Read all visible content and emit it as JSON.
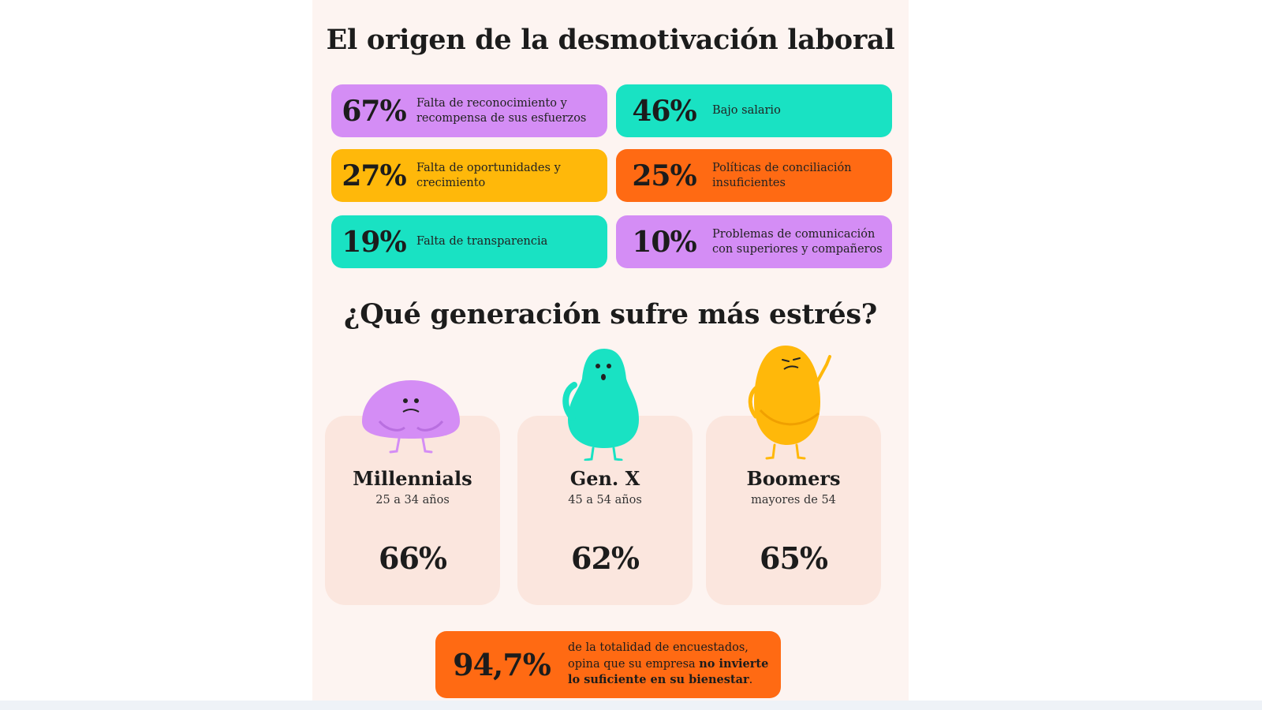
{
  "section1": {
    "title": "El origen de la desmotivación laboral"
  },
  "section2": {
    "title": "¿Qué generación sufre más estrés?"
  },
  "colors": {
    "purple": "#d48df5",
    "teal": "#19e2c3",
    "yellow": "#ffb80a",
    "orange": "#ff6a13",
    "card": "#fbe6de",
    "panel": "#fdf4f1"
  },
  "chart_data": [
    {
      "type": "table",
      "title": "El origen de la desmotivación laboral",
      "categories": [
        "Falta de reconocimiento y recompensa de sus esfuerzos",
        "Bajo salario",
        "Falta de oportunidades y crecimiento",
        "Políticas de conciliación insuficientes",
        "Falta de transparencia",
        "Problemas de comunicación con superiores y compañeros"
      ],
      "values": [
        67,
        46,
        27,
        25,
        19,
        10
      ],
      "labels": [
        "67%",
        "46%",
        "27%",
        "25%",
        "19%",
        "10%"
      ],
      "label_lines": [
        [
          "Falta de reconocimiento y",
          "recompensa de sus esfuerzos"
        ],
        [
          "Bajo salario"
        ],
        [
          "Falta de oportunidades y",
          "crecimiento"
        ],
        [
          "Políticas de conciliación",
          "insuficientes"
        ],
        [
          "Falta de transparencia"
        ],
        [
          "Problemas de comunicación",
          "con superiores y compañeros"
        ]
      ],
      "unit": "%"
    },
    {
      "type": "table",
      "title": "¿Qué generación sufre más estrés?",
      "categories": [
        "Millennials",
        "Gen. X",
        "Boomers"
      ],
      "subtitles": [
        "25 a 34 años",
        "45 a 54 años",
        "mayores de 54"
      ],
      "values": [
        66,
        62,
        65
      ],
      "labels": [
        "66%",
        "62%",
        "65%"
      ],
      "unit": "%"
    }
  ],
  "summary": {
    "value": "94,7%",
    "line1": "de la totalidad de encuestados,",
    "line2_pre": "opina que su empresa ",
    "line2_bold": "no invierte",
    "line3_bold": "lo suficiente en su bienestar",
    "line3_post": "."
  }
}
